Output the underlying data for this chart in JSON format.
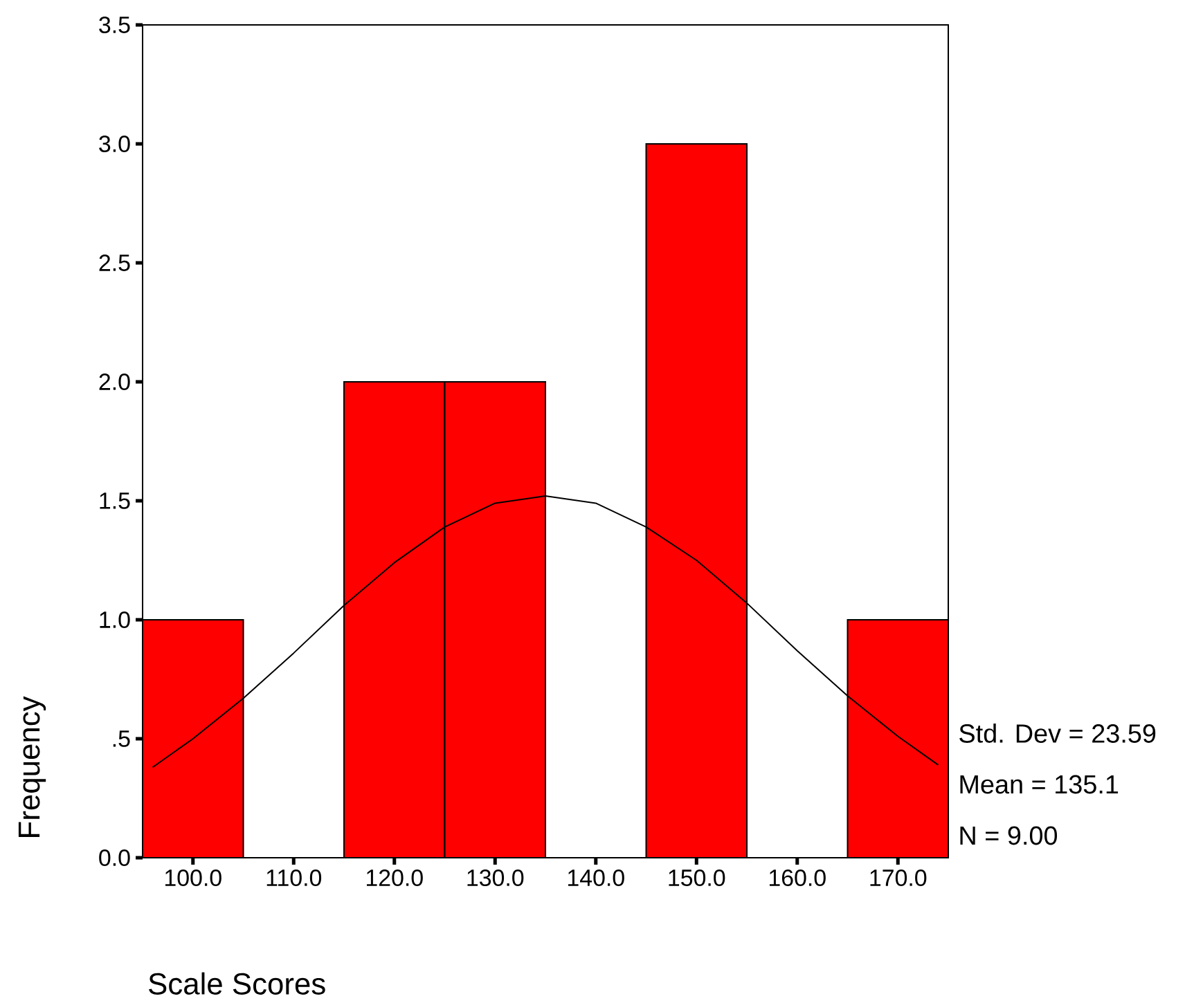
{
  "chart_data": {
    "type": "histogram",
    "xlabel": "Scale Scores",
    "ylabel": "Frequency",
    "bins": [
      95,
      105,
      115,
      125,
      135,
      145,
      155,
      165,
      175
    ],
    "values": [
      1,
      0,
      2,
      2,
      0,
      3,
      0,
      1
    ],
    "color": "#ff0000",
    "series": [
      {
        "type": "line",
        "color": "#000000",
        "x": [
          96,
          100,
          105,
          110,
          115,
          120,
          125,
          130,
          135,
          140,
          145,
          150,
          155,
          160,
          165,
          170,
          174
        ],
        "values": [
          0.38,
          0.5,
          0.67,
          0.86,
          1.06,
          1.24,
          1.39,
          1.49,
          1.52,
          1.49,
          1.39,
          1.25,
          1.07,
          0.87,
          0.68,
          0.51,
          0.39
        ]
      }
    ],
    "xlim": [
      95,
      175
    ],
    "ylim": [
      0,
      3.5
    ],
    "xticks": [
      {
        "value": 100,
        "label": "100.0"
      },
      {
        "value": 110,
        "label": "110.0"
      },
      {
        "value": 120,
        "label": "120.0"
      },
      {
        "value": 130,
        "label": "130.0"
      },
      {
        "value": 140,
        "label": "140.0"
      },
      {
        "value": 150,
        "label": "150.0"
      },
      {
        "value": 160,
        "label": "160.0"
      },
      {
        "value": 170,
        "label": "170.0"
      }
    ],
    "yticks": [
      {
        "value": 0,
        "label": "0.0"
      },
      {
        "value": 0.5,
        "label": ".5"
      },
      {
        "value": 1,
        "label": "1.0"
      },
      {
        "value": 1.5,
        "label": "1.5"
      },
      {
        "value": 2,
        "label": "2.0"
      },
      {
        "value": 2.5,
        "label": "2.5"
      },
      {
        "value": 3,
        "label": "3.0"
      },
      {
        "value": 3.5,
        "label": "3.5"
      }
    ],
    "annotations": [
      "Std. Dev = 23.59",
      "Mean = 135.1",
      "N = 9.00"
    ]
  }
}
